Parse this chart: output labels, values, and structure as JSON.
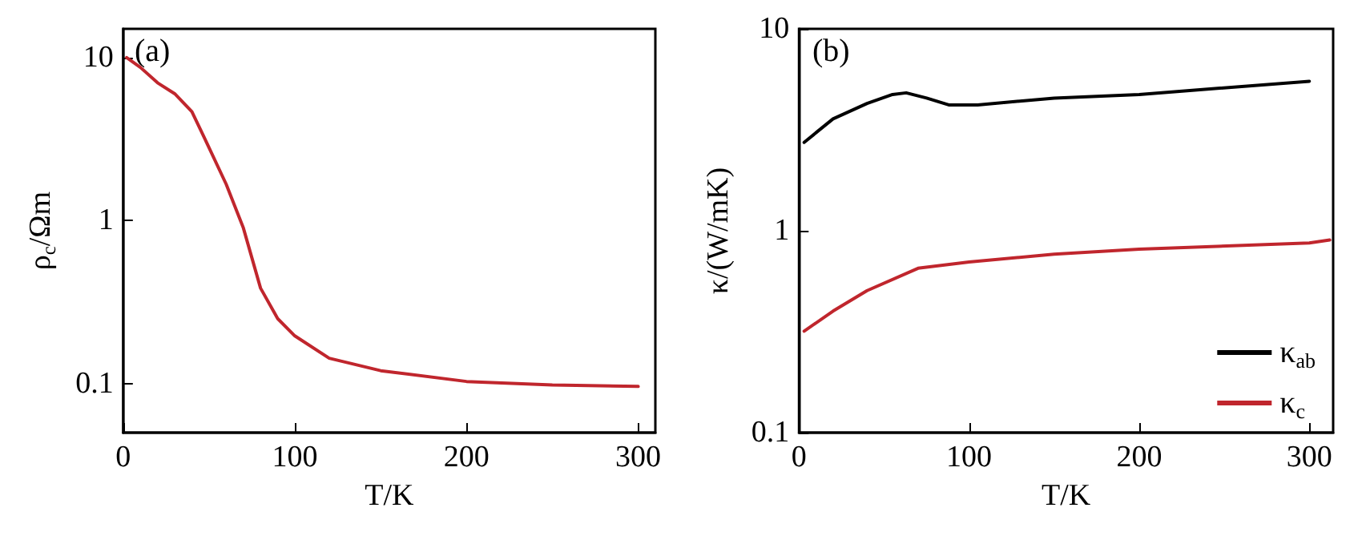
{
  "chart_data": [
    {
      "type": "line",
      "xlabel": "T/K",
      "ylabel": "ρ$_{c}$/Ωm",
      "annotations": [
        "(a)"
      ],
      "log": "y",
      "xlim": [
        0,
        310
      ],
      "xticks": [
        0,
        100,
        200,
        300
      ],
      "ylim": [
        0.05,
        15
      ],
      "yticks": [
        0.1,
        1,
        10
      ],
      "grid": false,
      "legend": false,
      "marker": "none",
      "line_style": "solid",
      "series": [
        {
          "color": "#c0262d",
          "x": [
            2,
            10,
            20,
            30,
            40,
            50,
            60,
            70,
            80,
            90,
            100,
            120,
            150,
            200,
            250,
            300
          ],
          "values": [
            10,
            8.7,
            7.0,
            6.0,
            4.66,
            2.8,
            1.67,
            0.9,
            0.385,
            0.25,
            0.196,
            0.143,
            0.12,
            0.103,
            0.098,
            0.096
          ]
        }
      ]
    },
    {
      "type": "line",
      "xlabel": "T/K",
      "ylabel": "κ/(W/mK)",
      "annotations": [
        "(b)"
      ],
      "log": "y",
      "xlim": [
        0,
        314
      ],
      "xticks": [
        0,
        100,
        200,
        300
      ],
      "ylim": [
        0.1,
        10
      ],
      "yticks": [
        0.1,
        1,
        10
      ],
      "grid": false,
      "legend": "bottom right",
      "marker": "none",
      "line_style": "solid",
      "series": [
        {
          "name": "κ$_{ab}$",
          "color": "#000000",
          "x": [
            3,
            20,
            40,
            55,
            63,
            75,
            88,
            105,
            150,
            200,
            300
          ],
          "values": [
            2.74,
            3.58,
            4.27,
            4.73,
            4.82,
            4.54,
            4.2,
            4.2,
            4.54,
            4.73,
            5.5
          ]
        },
        {
          "name": "κ$_{c}$",
          "color": "#c0262d",
          "x": [
            3,
            20,
            40,
            70,
            100,
            150,
            200,
            300,
            312
          ],
          "values": [
            0.318,
            0.4,
            0.505,
            0.652,
            0.7,
            0.765,
            0.81,
            0.87,
            0.9
          ]
        }
      ]
    }
  ]
}
